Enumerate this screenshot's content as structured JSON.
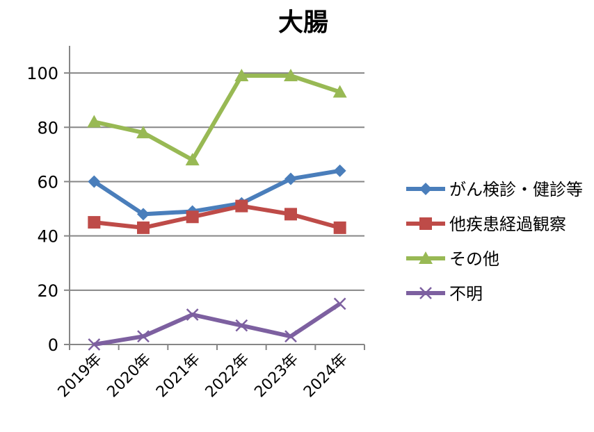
{
  "chart_data": {
    "type": "line",
    "title": "大腸",
    "xlabel": "",
    "ylabel": "",
    "categories": [
      "2019年",
      "2020年",
      "2021年",
      "2022年",
      "2023年",
      "2024年"
    ],
    "ylim": [
      0,
      110
    ],
    "yticks": [
      0,
      20,
      40,
      60,
      80,
      100
    ],
    "grid": true,
    "legend_position": "right",
    "series": [
      {
        "name": "がん検診・健診等",
        "values": [
          60,
          48,
          49,
          52,
          61,
          64
        ],
        "color": "#4a7ebb",
        "marker": "diamond"
      },
      {
        "name": "他疾患経過観察",
        "values": [
          45,
          43,
          47,
          51,
          48,
          43
        ],
        "color": "#be4b48",
        "marker": "square"
      },
      {
        "name": "その他",
        "values": [
          82,
          78,
          68,
          99,
          99,
          93
        ],
        "color": "#98b954",
        "marker": "triangle"
      },
      {
        "name": "不明",
        "values": [
          0,
          3,
          11,
          7,
          3,
          15
        ],
        "color": "#7d60a0",
        "marker": "x"
      }
    ]
  }
}
